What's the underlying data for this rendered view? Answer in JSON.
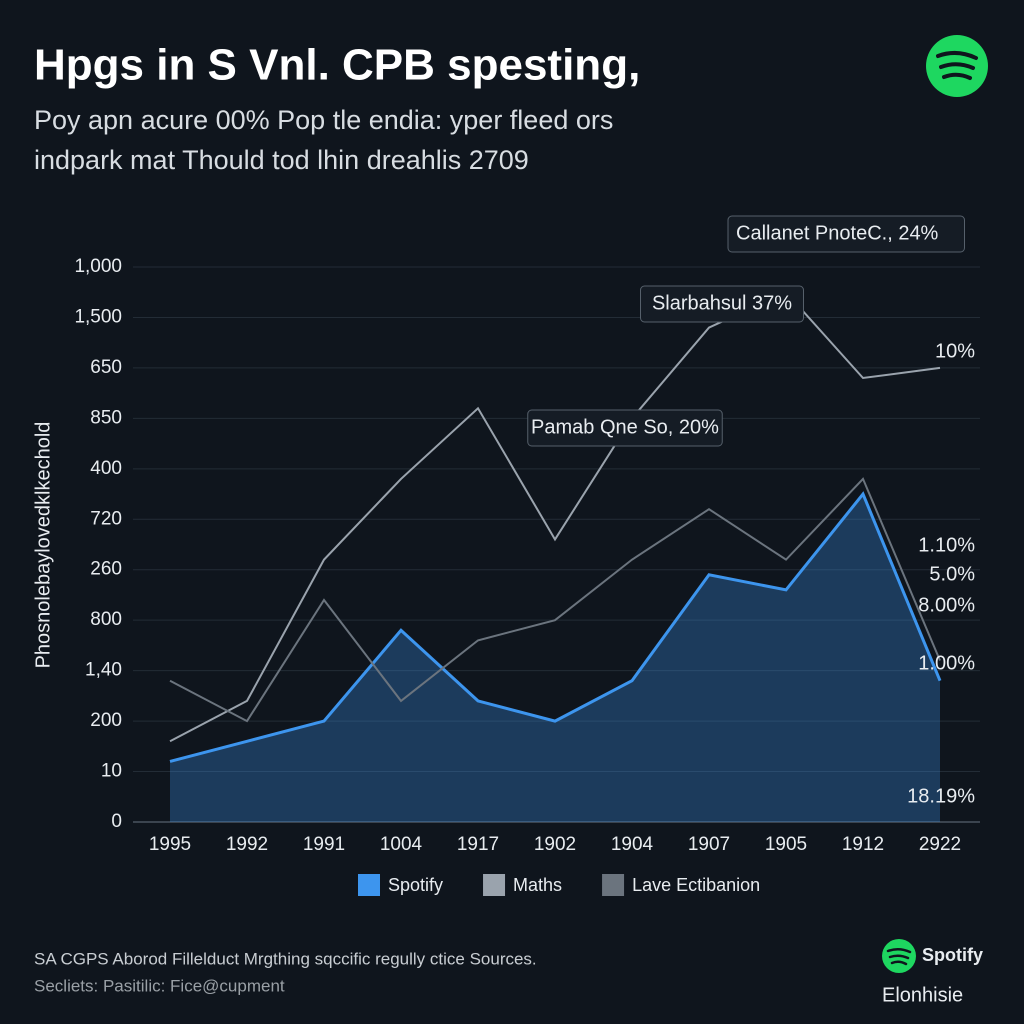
{
  "chart_data": {
    "type": "area_line",
    "title": "Hpgs in S Vnl. CPB spesting,",
    "subtitle": [
      "Poy apn acure 00% Pop tle endia: yper fleed ors",
      "indpark mat Thould tod lhin dreahlis 2709"
    ],
    "y_axis_label": "Phosnolebaylovedklkechold",
    "y_labels": [
      "0",
      "10",
      "200",
      "1,40",
      "800",
      "260",
      "720",
      "400",
      "850",
      "650",
      "1,500",
      "1,000"
    ],
    "ylim": [
      0,
      11
    ],
    "categories": [
      "1995",
      "1992",
      "1991",
      "1004",
      "1917",
      "1902",
      "1904",
      "1907",
      "1905",
      "1912",
      "2922"
    ],
    "series": [
      {
        "name": "Spotify",
        "color": "#3d95ee",
        "values": [
          1.2,
          1.6,
          2.0,
          3.8,
          2.4,
          2.0,
          2.8,
          4.9,
          4.6,
          6.5,
          2.8
        ]
      },
      {
        "name": "Maths",
        "color": "#9aa3ad",
        "values": [
          1.6,
          2.4,
          5.2,
          6.8,
          8.2,
          5.6,
          8.0,
          9.8,
          10.5,
          8.8,
          9.0
        ]
      },
      {
        "name": "Lave Ectibanion",
        "color": "#6b747e",
        "values": [
          2.8,
          2.0,
          4.4,
          2.4,
          3.6,
          4.0,
          5.2,
          6.2,
          5.2,
          6.8,
          3.2
        ]
      }
    ],
    "annotations": [
      "Callanet PnoteC., 24%",
      "Slarbahsul 37%",
      "Pamab Qne So, 20%",
      "10%",
      "1.10%",
      "5.0%",
      "8.00%",
      "1.00%",
      "18.19%"
    ],
    "source": [
      "SA CGPS Aborod Fillelduct Mrgthing sqccific regully ctice Sources.",
      "Secliets: Pasitilic: Fice@cupment"
    ],
    "brand": [
      "Spotify",
      "Elonhisie"
    ]
  }
}
